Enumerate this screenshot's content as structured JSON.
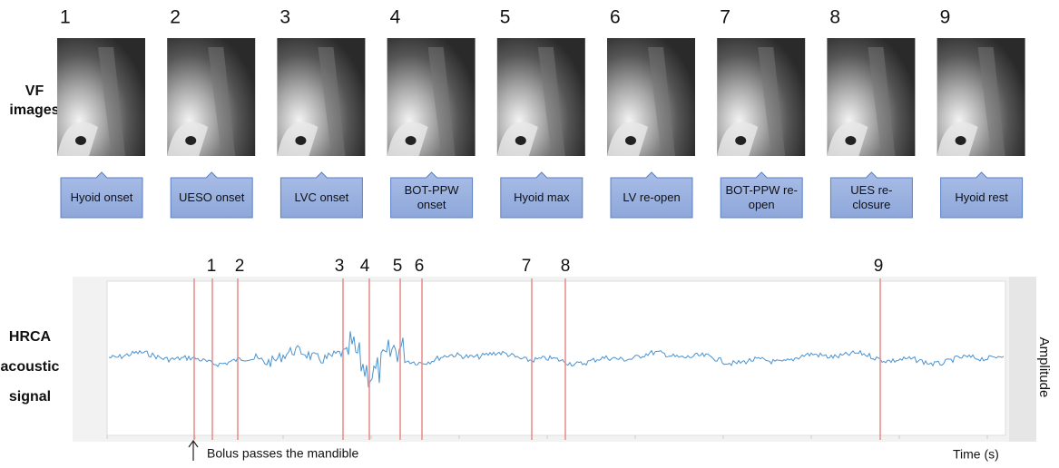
{
  "row_labels": {
    "vf": [
      "VF",
      "images"
    ],
    "hrca": [
      "HRCA",
      "acoustic",
      "signal"
    ]
  },
  "frames": [
    {
      "number": "1",
      "event": "Hyoid onset"
    },
    {
      "number": "2",
      "event": "UESO onset"
    },
    {
      "number": "3",
      "event": "LVC onset"
    },
    {
      "number": "4",
      "event": "BOT-PPW onset"
    },
    {
      "number": "5",
      "event": "Hyoid max"
    },
    {
      "number": "6",
      "event": "LV re-open"
    },
    {
      "number": "7",
      "event": "BOT-PPW re-open"
    },
    {
      "number": "8",
      "event": "UES re-closure"
    },
    {
      "number": "9",
      "event": "Hyoid rest"
    }
  ],
  "signal": {
    "markers": [
      "1",
      "2",
      "3",
      "4",
      "5",
      "6",
      "7",
      "8",
      "9"
    ],
    "annotation": "Bolus passes the mandible",
    "x_label": "Time (s)",
    "y_label": "Amplitude"
  }
}
